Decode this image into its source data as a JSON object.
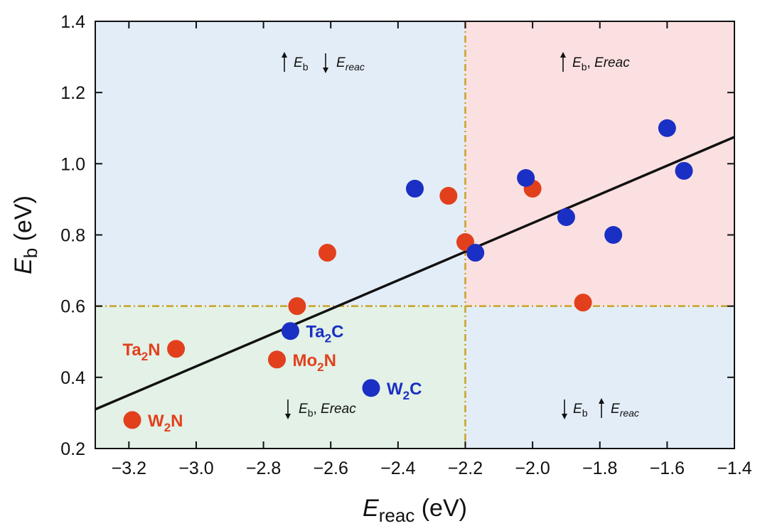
{
  "chart_data": {
    "type": "scatter",
    "xlabel": {
      "main": "E",
      "sub": "reac",
      "unit": " (eV)"
    },
    "ylabel": {
      "main": "E",
      "sub": "b",
      "unit": " (eV)"
    },
    "xlim": [
      -3.3,
      -1.4
    ],
    "ylim": [
      0.2,
      1.4
    ],
    "xticks": [
      -3.2,
      -3.0,
      -2.8,
      -2.6,
      -2.4,
      -2.2,
      -2.0,
      -1.8,
      -1.6,
      -1.4
    ],
    "xtick_labels": [
      "−3.2",
      "−3.0",
      "−2.8",
      "−2.6",
      "−2.4",
      "−2.2",
      "−2.0",
      "−1.8",
      "−1.6",
      "−1.4"
    ],
    "yticks": [
      0.2,
      0.4,
      0.6,
      0.8,
      1.0,
      1.2,
      1.4
    ],
    "ytick_labels": [
      "0.2",
      "0.4",
      "0.6",
      "0.8",
      "1.0",
      "1.2",
      "1.4"
    ],
    "threshold_x": -2.2,
    "threshold_y": 0.6,
    "fit_line": {
      "x": [
        -3.3,
        -1.4
      ],
      "y": [
        0.31,
        1.075
      ]
    },
    "colors": {
      "nitride": "#e2401d",
      "carbide": "#1a2fc4",
      "fit_line": "#111111",
      "threshold": "#c9a227",
      "quad_top_left": "#e3edf7",
      "quad_top_right": "#fbe0e1",
      "quad_bottom_left": "#e3f1e6",
      "quad_bottom_right": "#e3edf7"
    },
    "series": [
      {
        "group": "nitride",
        "points": [
          {
            "x": -3.19,
            "y": 0.28,
            "label": {
              "main": "W",
              "sub": "2",
              "post": "N"
            },
            "label_side": "right"
          },
          {
            "x": -3.06,
            "y": 0.48,
            "label": {
              "main": "Ta",
              "sub": "2",
              "post": "N"
            },
            "label_side": "left"
          },
          {
            "x": -2.76,
            "y": 0.45,
            "label": {
              "main": "Mo",
              "sub": "2",
              "post": "N"
            },
            "label_side": "right"
          },
          {
            "x": -2.7,
            "y": 0.6
          },
          {
            "x": -2.61,
            "y": 0.75
          },
          {
            "x": -2.25,
            "y": 0.91
          },
          {
            "x": -2.2,
            "y": 0.78
          },
          {
            "x": -2.0,
            "y": 0.93
          },
          {
            "x": -1.85,
            "y": 0.61
          }
        ]
      },
      {
        "group": "carbide",
        "points": [
          {
            "x": -2.72,
            "y": 0.53,
            "label": {
              "main": "Ta",
              "sub": "2",
              "post": "C"
            },
            "label_side": "right"
          },
          {
            "x": -2.48,
            "y": 0.37,
            "label": {
              "main": "W",
              "sub": "2",
              "post": "C"
            },
            "label_side": "right"
          },
          {
            "x": -2.35,
            "y": 0.93
          },
          {
            "x": -2.17,
            "y": 0.75
          },
          {
            "x": -2.02,
            "y": 0.96
          },
          {
            "x": -1.9,
            "y": 0.85
          },
          {
            "x": -1.76,
            "y": 0.8
          },
          {
            "x": -1.6,
            "y": 1.1
          },
          {
            "x": -1.55,
            "y": 0.98
          }
        ]
      }
    ],
    "quadrant_annotations": {
      "top_left": {
        "arrow1": "up",
        "var1_main": "E",
        "var1_sub": "b",
        "arrow2": "down",
        "var2": "E",
        "var2_italic_sub": "reac"
      },
      "top_right": {
        "arrow": "up",
        "text_main": "E",
        "text_sub": "b",
        "text_sep": ", ",
        "text_var2": "E",
        "text_var2_italic_sub": "reac"
      },
      "bottom_left": {
        "arrow": "down",
        "text_main": "E",
        "text_sub": "b",
        "text_sep": ", ",
        "text_var2": "E",
        "text_var2_italic_sub": "reac"
      },
      "bottom_right": {
        "arrow1": "down",
        "var1_main": "E",
        "var1_sub": "b",
        "arrow2": "up",
        "var2": "E",
        "var2_italic_sub": "reac"
      }
    }
  }
}
